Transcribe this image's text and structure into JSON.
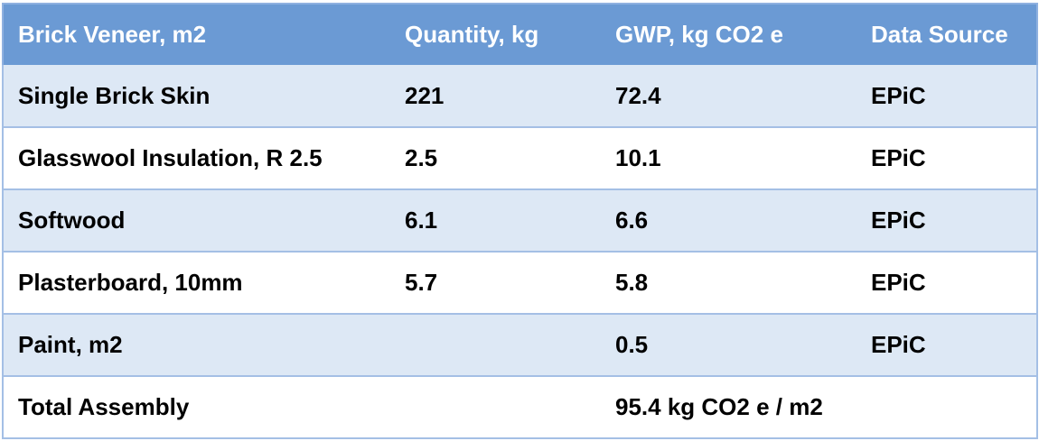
{
  "table": {
    "headers": [
      "Brick Veneer, m2",
      "Quantity, kg",
      "GWP, kg CO2 e",
      "Data Source"
    ],
    "rows": [
      {
        "material": "Single Brick Skin",
        "quantity": "221",
        "gwp": "72.4",
        "source": "EPiC"
      },
      {
        "material": "Glasswool Insulation, R 2.5",
        "quantity": "2.5",
        "gwp": "10.1",
        "source": "EPiC"
      },
      {
        "material": "Softwood",
        "quantity": "6.1",
        "gwp": "6.6",
        "source": "EPiC"
      },
      {
        "material": "Plasterboard, 10mm",
        "quantity": "5.7",
        "gwp": "5.8",
        "source": "EPiC"
      },
      {
        "material": "Paint, m2",
        "quantity": "",
        "gwp": "0.5",
        "source": "EPiC"
      }
    ],
    "total": {
      "label": "Total Assembly",
      "quantity": "",
      "gwp": "95.4 kg CO2 e / m2",
      "source": ""
    }
  },
  "colors": {
    "header_bg": "#6b9ad4",
    "band_bg": "#dde8f5",
    "border": "#a4bfe5"
  }
}
